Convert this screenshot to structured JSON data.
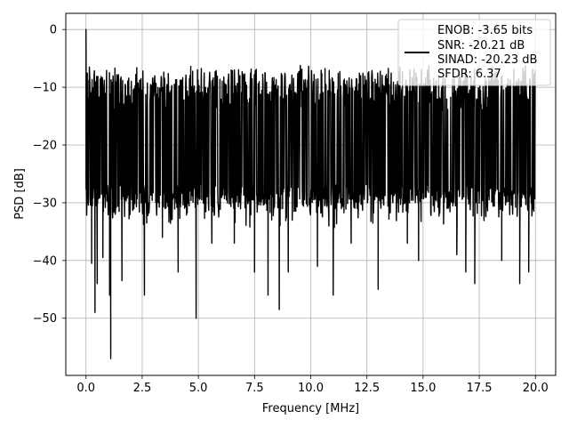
{
  "chart_data": {
    "type": "line",
    "title": "",
    "xlabel": "Frequency [MHz]",
    "ylabel": "PSD [dB]",
    "xlim": [
      -0.9,
      20.9
    ],
    "ylim": [
      -59.9,
      2.8
    ],
    "xticks": [
      0.0,
      2.5,
      5.0,
      7.5,
      10.0,
      12.5,
      15.0,
      17.5,
      20.0
    ],
    "xtick_labels": [
      "0.0",
      "2.5",
      "5.0",
      "7.5",
      "10.0",
      "12.5",
      "15.0",
      "17.5",
      "20.0"
    ],
    "yticks": [
      0,
      -10,
      -20,
      -30,
      -40,
      -50
    ],
    "ytick_labels": [
      "0",
      "−10",
      "−20",
      "−30",
      "−40",
      "−50"
    ],
    "grid": true,
    "legend_position": "top-right",
    "series": [
      {
        "name": "ENOB: -3.65 bits\nSNR: -20.21 dB\nSINAD: -20.23 dB\nSFDR: 6.37",
        "color": "#000000",
        "band": {
          "x_start": 0.0,
          "x_end": 20.0,
          "typical_upper": -13,
          "typical_lower": -28,
          "peak_max": -7.5
        },
        "peaks": [
          {
            "x": 0.0,
            "y": 0.0
          },
          {
            "x": 0.05,
            "y": -11
          },
          {
            "x": 0.15,
            "y": -6.5
          },
          {
            "x": 0.25,
            "y": -40.5
          },
          {
            "x": 0.4,
            "y": -49
          },
          {
            "x": 0.5,
            "y": -44
          },
          {
            "x": 0.75,
            "y": -39.5
          },
          {
            "x": 1.1,
            "y": -57
          },
          {
            "x": 1.05,
            "y": -46
          },
          {
            "x": 1.6,
            "y": -43.5
          },
          {
            "x": 2.6,
            "y": -46
          },
          {
            "x": 3.4,
            "y": -36
          },
          {
            "x": 4.1,
            "y": -42
          },
          {
            "x": 4.9,
            "y": -50
          },
          {
            "x": 5.6,
            "y": -37
          },
          {
            "x": 6.6,
            "y": -37
          },
          {
            "x": 7.5,
            "y": -42
          },
          {
            "x": 8.1,
            "y": -46
          },
          {
            "x": 8.6,
            "y": -48.5
          },
          {
            "x": 9.0,
            "y": -42
          },
          {
            "x": 10.3,
            "y": -41
          },
          {
            "x": 11.0,
            "y": -46
          },
          {
            "x": 11.8,
            "y": -37
          },
          {
            "x": 13.0,
            "y": -45
          },
          {
            "x": 14.3,
            "y": -37
          },
          {
            "x": 14.8,
            "y": -40
          },
          {
            "x": 16.5,
            "y": -39
          },
          {
            "x": 16.9,
            "y": -42
          },
          {
            "x": 17.3,
            "y": -44
          },
          {
            "x": 18.5,
            "y": -40
          },
          {
            "x": 19.3,
            "y": -44
          },
          {
            "x": 19.7,
            "y": -42
          }
        ]
      }
    ],
    "legend": {
      "lines": [
        "ENOB: -3.65 bits",
        "SNR: -20.21 dB",
        "SINAD: -20.23 dB",
        "SFDR: 6.37"
      ]
    }
  }
}
